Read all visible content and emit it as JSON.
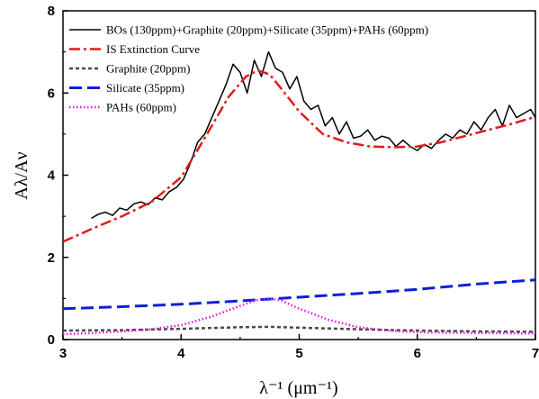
{
  "chart_data": {
    "type": "line",
    "xlabel": "λ⁻¹ (μm⁻¹)",
    "ylabel": "Aλ/Aν",
    "xlim": [
      3,
      7
    ],
    "ylim": [
      0,
      8
    ],
    "x_ticks": [
      "3",
      "4",
      "5",
      "6",
      "7"
    ],
    "y_ticks": [
      "0",
      "2",
      "4",
      "6",
      "8"
    ],
    "grid": false,
    "legend_position": "top-left",
    "series": [
      {
        "name": "BOs (130ppm)+Graphite (20ppm)+Silicate (35ppm)+PAHs (60ppm)",
        "color": "#000000",
        "style": "solid",
        "x": [
          3.24,
          3.3,
          3.36,
          3.42,
          3.48,
          3.54,
          3.6,
          3.66,
          3.72,
          3.78,
          3.84,
          3.9,
          3.96,
          4.02,
          4.08,
          4.14,
          4.2,
          4.26,
          4.32,
          4.38,
          4.44,
          4.5,
          4.56,
          4.62,
          4.68,
          4.74,
          4.8,
          4.86,
          4.92,
          4.98,
          5.04,
          5.1,
          5.16,
          5.22,
          5.28,
          5.34,
          5.4,
          5.46,
          5.52,
          5.58,
          5.64,
          5.7,
          5.76,
          5.82,
          5.88,
          5.94,
          6.0,
          6.06,
          6.12,
          6.18,
          6.24,
          6.3,
          6.36,
          6.42,
          6.48,
          6.54,
          6.6,
          6.66,
          6.72,
          6.78,
          6.84,
          6.9,
          6.96,
          7.0
        ],
        "values": [
          2.95,
          3.05,
          3.1,
          3.02,
          3.2,
          3.15,
          3.3,
          3.35,
          3.28,
          3.45,
          3.4,
          3.6,
          3.7,
          3.9,
          4.3,
          4.8,
          5.0,
          5.4,
          5.8,
          6.2,
          6.7,
          6.5,
          6.0,
          6.8,
          6.4,
          7.0,
          6.6,
          6.5,
          6.1,
          6.4,
          5.8,
          5.6,
          5.7,
          5.2,
          5.4,
          5.0,
          5.3,
          4.9,
          4.95,
          5.1,
          4.85,
          4.95,
          4.9,
          4.7,
          4.85,
          4.7,
          4.6,
          4.75,
          4.65,
          4.85,
          5.0,
          4.9,
          5.1,
          5.0,
          5.3,
          5.1,
          5.4,
          5.6,
          5.2,
          5.7,
          5.4,
          5.5,
          5.6,
          5.4
        ]
      },
      {
        "name": "IS Extinction Curve",
        "color": "#e21a1a",
        "style": "dashdot",
        "x": [
          3.0,
          3.25,
          3.5,
          3.75,
          4.0,
          4.2,
          4.4,
          4.55,
          4.65,
          4.75,
          4.85,
          5.0,
          5.2,
          5.4,
          5.6,
          5.8,
          6.0,
          6.2,
          6.4,
          6.6,
          6.8,
          7.0
        ],
        "values": [
          2.38,
          2.7,
          3.0,
          3.35,
          3.95,
          4.9,
          5.9,
          6.4,
          6.55,
          6.45,
          6.1,
          5.55,
          5.0,
          4.8,
          4.7,
          4.68,
          4.7,
          4.8,
          4.95,
          5.1,
          5.25,
          5.42
        ]
      },
      {
        "name": "Graphite (20ppm)",
        "color": "#4a4a4a",
        "style": "dashed",
        "x": [
          3.0,
          3.5,
          4.0,
          4.5,
          4.75,
          5.0,
          5.5,
          6.0,
          6.5,
          7.0
        ],
        "values": [
          0.22,
          0.23,
          0.26,
          0.3,
          0.31,
          0.29,
          0.25,
          0.22,
          0.2,
          0.19
        ]
      },
      {
        "name": "Silicate (35ppm)",
        "color": "#0b20d8",
        "style": "longdash",
        "x": [
          3.0,
          3.5,
          4.0,
          4.5,
          5.0,
          5.5,
          6.0,
          6.5,
          7.0
        ],
        "values": [
          0.75,
          0.8,
          0.86,
          0.94,
          1.03,
          1.12,
          1.22,
          1.35,
          1.45
        ]
      },
      {
        "name": "PAHs (60ppm)",
        "color": "#e014e0",
        "style": "dotted",
        "x": [
          3.0,
          3.25,
          3.5,
          3.75,
          4.0,
          4.25,
          4.5,
          4.65,
          4.75,
          4.85,
          5.0,
          5.25,
          5.5,
          5.75,
          6.0,
          6.5,
          7.0
        ],
        "values": [
          0.13,
          0.16,
          0.2,
          0.25,
          0.35,
          0.55,
          0.82,
          0.97,
          1.0,
          0.95,
          0.75,
          0.48,
          0.3,
          0.22,
          0.18,
          0.16,
          0.15
        ]
      }
    ]
  }
}
